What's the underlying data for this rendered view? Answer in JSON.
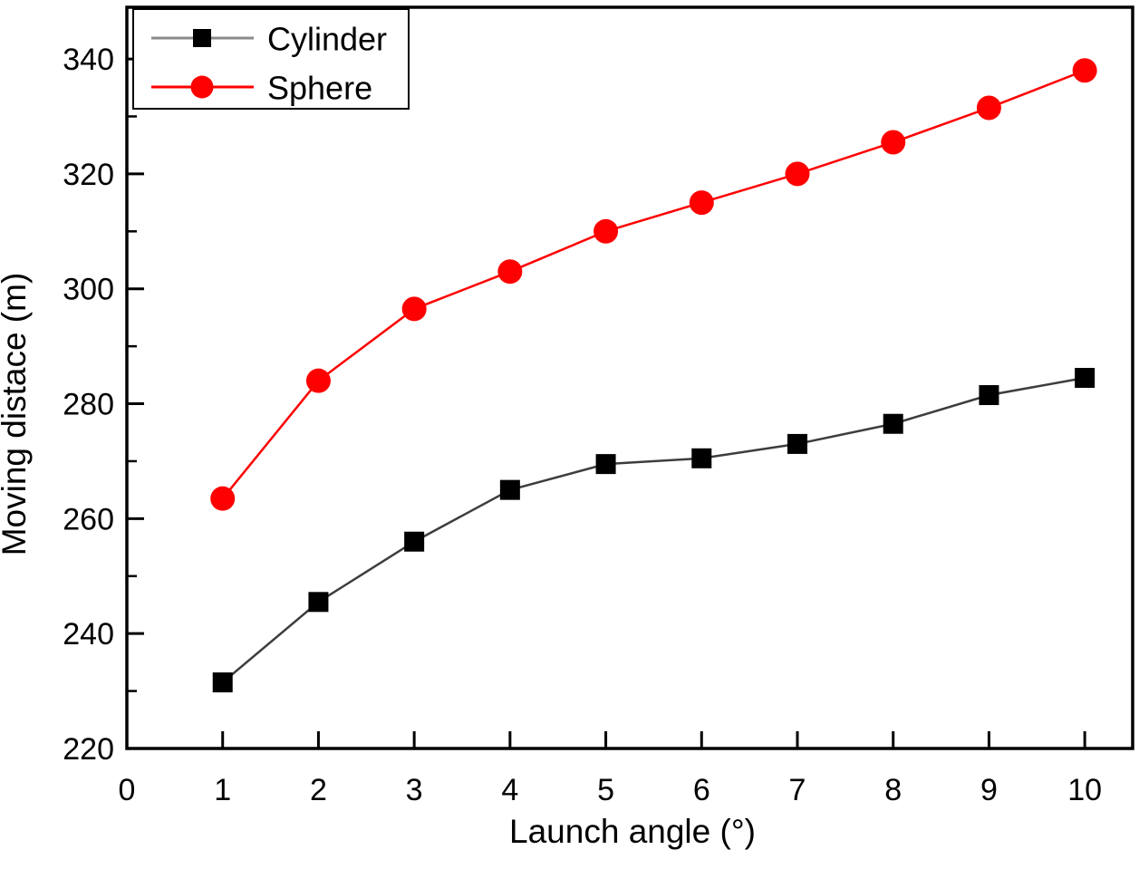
{
  "chart_data": {
    "type": "line",
    "title": "",
    "xlabel": "Launch angle (°)",
    "ylabel": "Moving distace (m)",
    "x": [
      1,
      2,
      3,
      4,
      5,
      6,
      7,
      8,
      9,
      10
    ],
    "series": [
      {
        "name": "Cylinder",
        "marker": "square",
        "marker_color": "#000000",
        "line_color": "#3d3d3d",
        "legend_line_color": "#8a8a8a",
        "values": [
          231.5,
          245.5,
          256,
          265,
          269.5,
          270.5,
          273,
          276.5,
          281.5,
          284.5
        ]
      },
      {
        "name": "Sphere",
        "marker": "circle",
        "marker_color": "#fe0000",
        "line_color": "#fe0000",
        "legend_line_color": "#fe0000",
        "values": [
          263.5,
          284,
          296.5,
          303,
          310,
          315,
          320,
          325.5,
          331.5,
          338
        ]
      }
    ],
    "xlim": [
      0,
      10.5
    ],
    "ylim": [
      220,
      349
    ],
    "x_ticks": [
      "0",
      "1",
      "2",
      "3",
      "4",
      "5",
      "6",
      "7",
      "8",
      "9",
      "10"
    ],
    "x_tick_values": [
      0,
      1,
      2,
      3,
      4,
      5,
      6,
      7,
      8,
      9,
      10
    ],
    "y_ticks": [
      "220",
      "240",
      "260",
      "280",
      "300",
      "320",
      "340"
    ],
    "y_tick_values": [
      220,
      240,
      260,
      280,
      300,
      320,
      340
    ],
    "y_minor_tick_values": [
      230,
      250,
      270,
      290,
      310,
      330
    ],
    "grid": false,
    "legend_position": "top-left",
    "frame_color": "#000000",
    "background": "#ffffff"
  }
}
